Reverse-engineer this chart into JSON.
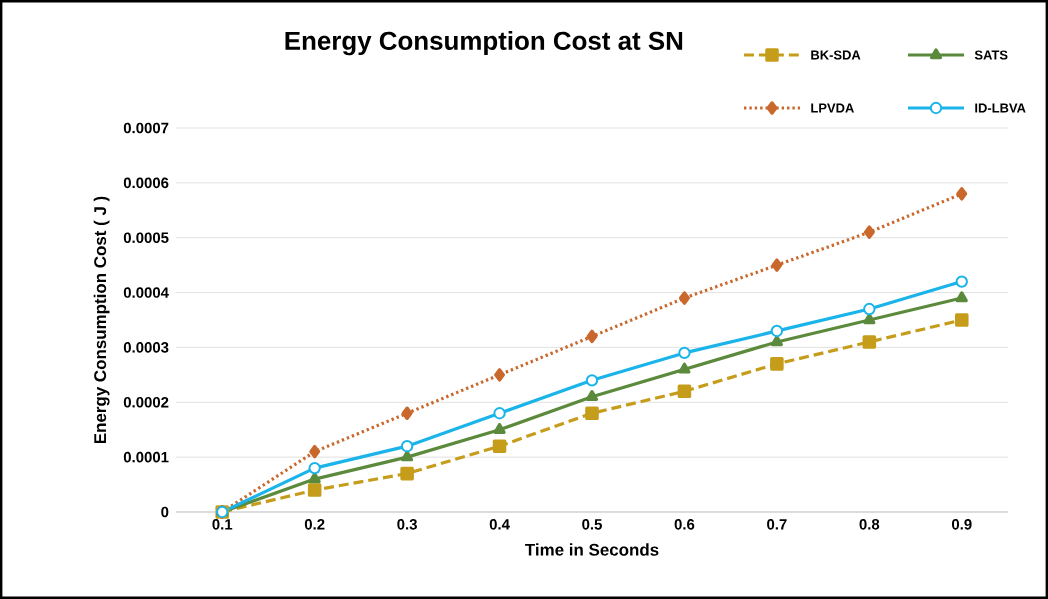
{
  "chart_data": {
    "type": "line",
    "title": "Energy Consumption Cost at SN",
    "xlabel": "Time in Seconds",
    "ylabel": "Energy Consumption Cost ( J )",
    "categories": [
      "0.1",
      "0.2",
      "0.3",
      "0.4",
      "0.5",
      "0.6",
      "0.7",
      "0.8",
      "0.9"
    ],
    "ylim": [
      0,
      0.0007
    ],
    "yticks": [
      0,
      0.0001,
      0.0002,
      0.0003,
      0.0004,
      0.0005,
      0.0006,
      0.0007
    ],
    "grid": "y",
    "legend": "top right",
    "series": [
      {
        "name": "BK-SDA",
        "color": "#c59d1a",
        "marker": "square",
        "line_style": "dashed",
        "values": [
          0,
          4e-05,
          7e-05,
          0.00012,
          0.00018,
          0.00022,
          0.00027,
          0.00031,
          0.00035
        ]
      },
      {
        "name": "SATS",
        "color": "#5b8a3c",
        "marker": "triangle",
        "line_style": "solid",
        "values": [
          0,
          6e-05,
          0.0001,
          0.00015,
          0.00021,
          0.00026,
          0.00031,
          0.00035,
          0.00039
        ]
      },
      {
        "name": "LPVDA",
        "color": "#c9682c",
        "marker": "diamond",
        "line_style": "dotted",
        "values": [
          0,
          0.00011,
          0.00018,
          0.00025,
          0.00032,
          0.00039,
          0.00045,
          0.00051,
          0.00058
        ]
      },
      {
        "name": "ID-LBVA",
        "color": "#1ab4ea",
        "marker": "circle",
        "line_style": "solid",
        "values": [
          0,
          8e-05,
          0.00012,
          0.00018,
          0.00024,
          0.00029,
          0.00033,
          0.00037,
          0.00042
        ]
      }
    ]
  }
}
